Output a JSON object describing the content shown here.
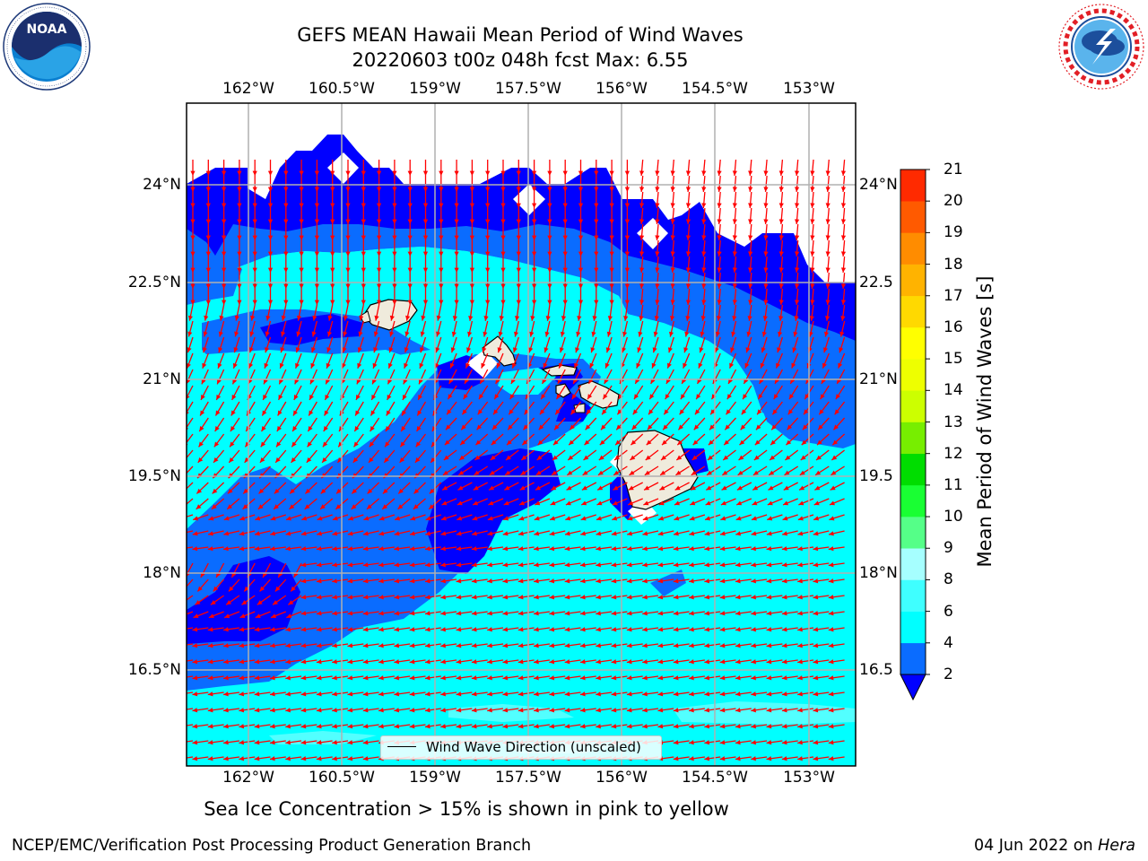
{
  "title": {
    "line1": "GEFS MEAN Hawaii Mean Period of Wind Waves",
    "line2": "20220603 t00z 048h fcst   Max: 6.55"
  },
  "logos": {
    "left": {
      "name": "noaa-logo",
      "text": "NOAA",
      "ring_text": "NATIONAL OCEANIC AND ATMOSPHERIC ADMINISTRATION · U.S. DEPARTMENT OF COMMERCE"
    },
    "right": {
      "name": "nws-logo",
      "ring_text": "NATIONAL WEATHER SERVICE"
    }
  },
  "map": {
    "lon_ticks": [
      "162°W",
      "160.5°W",
      "159°W",
      "157.5°W",
      "156°W",
      "154.5°W",
      "153°W"
    ],
    "lat_ticks": [
      "24°N",
      "22.5°N",
      "21°N",
      "19.5°N",
      "18°N",
      "16.5°N"
    ],
    "lat_ticks_right": [
      "24°N",
      "22.5",
      "21°N",
      "19.5",
      "18°N",
      "16.5"
    ],
    "lon_range": [
      -163,
      -152.3
    ],
    "lat_range": [
      15.4,
      25.3
    ],
    "colors": {
      "lt2": "#0000ff",
      "c2_4": "#0a6cff",
      "c4_6": "#00ffff",
      "c6_8": "#52ffff",
      "land": "#efebdc",
      "arrow": "#ff0000",
      "grid": "#b0b0b0"
    },
    "legend_label": "Wind Wave Direction (unscaled)"
  },
  "colorbar": {
    "label": "Mean Period of Wind Waves [s]",
    "ticks": [
      "2",
      "4",
      "6",
      "8",
      "9",
      "10",
      "11",
      "12",
      "13",
      "14",
      "15",
      "16",
      "17",
      "18",
      "19",
      "20",
      "21"
    ],
    "colors": [
      "#0a6cff",
      "#00ffff",
      "#3fffff",
      "#a6ffff",
      "#55ff88",
      "#19ff33",
      "#00dd00",
      "#77ee00",
      "#ccff00",
      "#eeff00",
      "#ffff00",
      "#ffd900",
      "#ffb300",
      "#ff8c00",
      "#ff5a00",
      "#ff2a00"
    ],
    "under_color": "#0000ff"
  },
  "note": "Sea Ice Concentration > 15% is shown in pink to yellow",
  "footer": {
    "left": "NCEP/EMC/Verification Post Processing Product Generation Branch",
    "right_prefix": "04 Jun 2022 on ",
    "right_host": "Hera"
  }
}
